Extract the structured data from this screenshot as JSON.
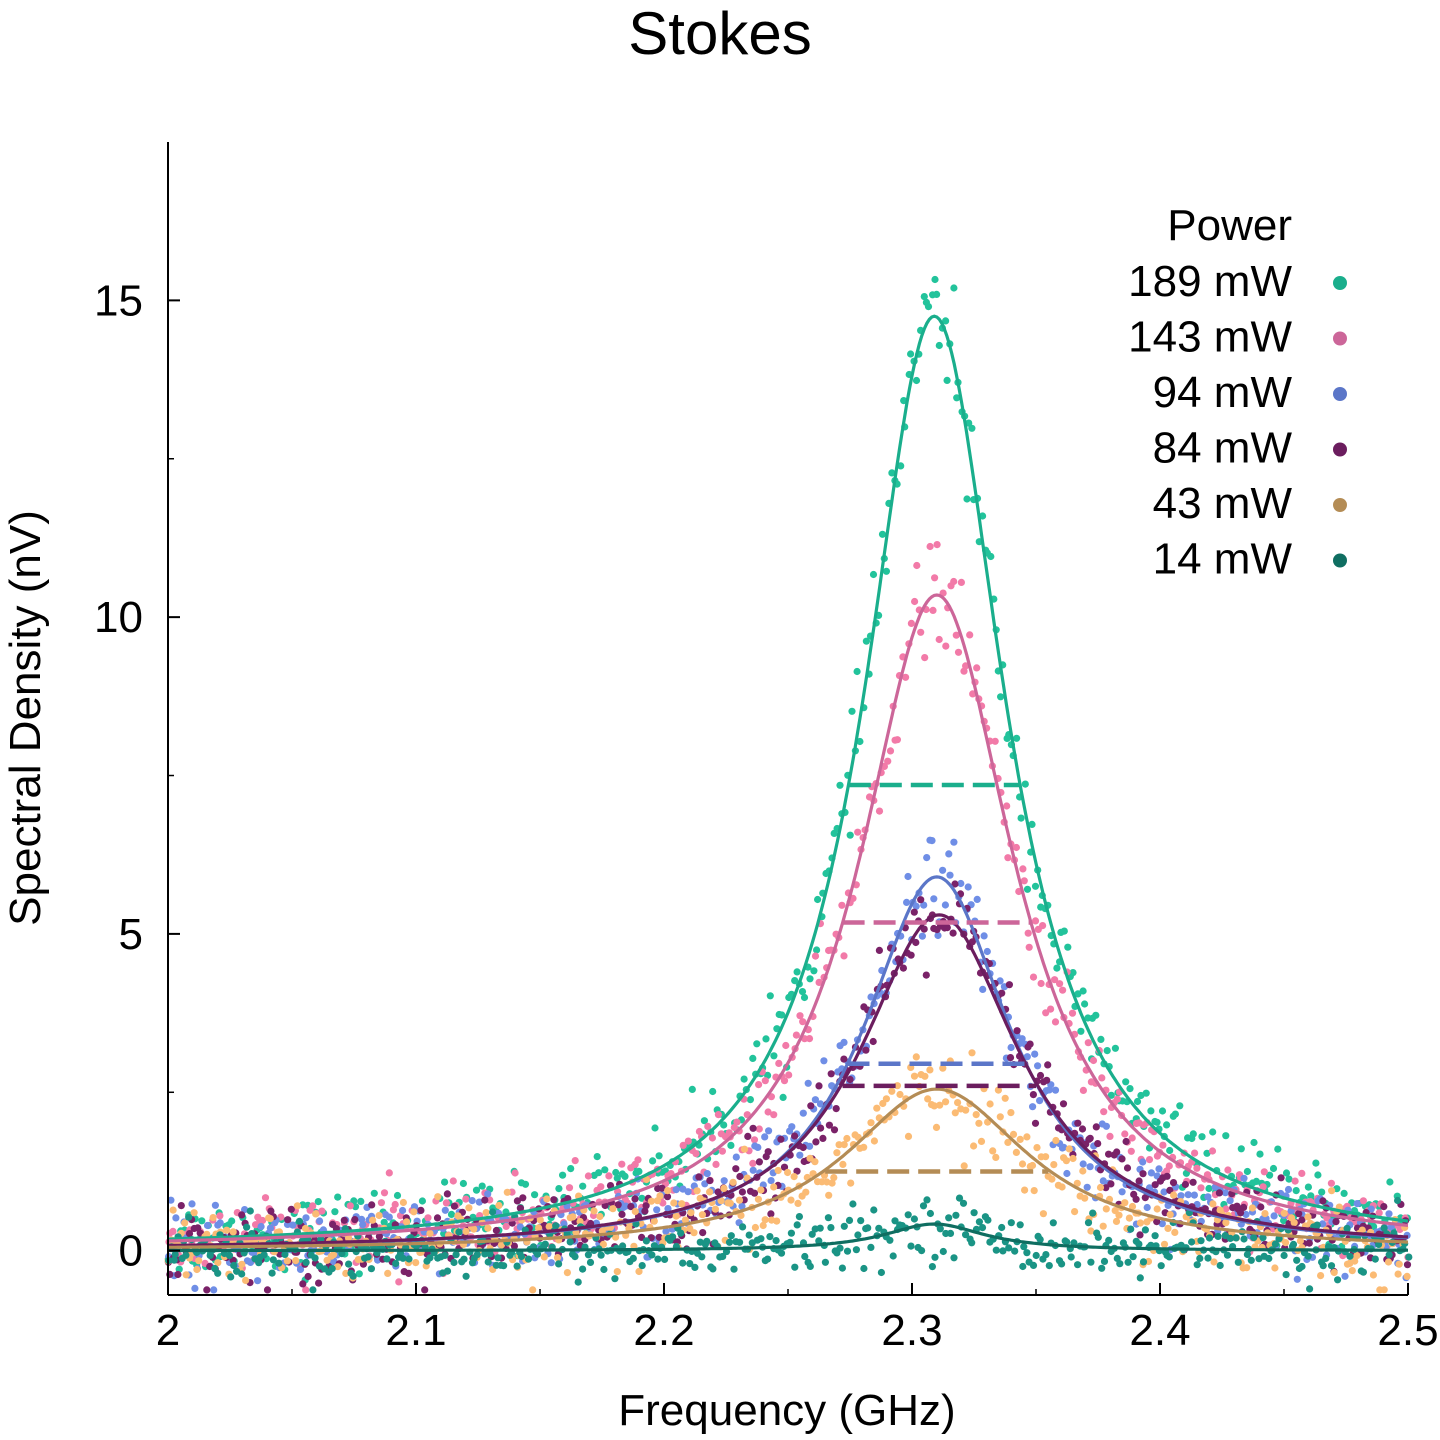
{
  "chart_data": {
    "type": "scatter",
    "title": "Stokes",
    "xlabel": "Frequency (GHz)",
    "ylabel": "Spectral Density (nV)",
    "xlim": [
      2.0,
      2.5
    ],
    "ylim": [
      -0.7,
      17.5
    ],
    "xticks": [
      2,
      2.1,
      2.2,
      2.3,
      2.4,
      2.5
    ],
    "xtick_labels": [
      "2",
      "2.1",
      "2.2",
      "2.3",
      "2.4",
      "2.5"
    ],
    "yticks": [
      0,
      5,
      10,
      15
    ],
    "ytick_labels": [
      "0",
      "5",
      "10",
      "15"
    ],
    "grid": false,
    "legend": {
      "title": "Power",
      "position": "top-right"
    },
    "series": [
      {
        "name": "189 mW",
        "color": "#1aae8c",
        "point_color": "#22c39b",
        "peak": 14.75,
        "center": 2.309,
        "fwhm": 0.069,
        "half_max": 7.35,
        "noise": 0.3
      },
      {
        "name": "143 mW",
        "color": "#cc6699",
        "point_color": "#f27aa8",
        "peak": 10.35,
        "center": 2.31,
        "fwhm": 0.076,
        "half_max": 5.18,
        "noise": 0.3
      },
      {
        "name": "94 mW",
        "color": "#5b76c8",
        "point_color": "#6f8ee6",
        "peak": 5.9,
        "center": 2.31,
        "fwhm": 0.072,
        "half_max": 2.95,
        "noise": 0.3
      },
      {
        "name": "84 mW",
        "color": "#6b1d5e",
        "point_color": "#7a2268",
        "peak": 5.3,
        "center": 2.311,
        "fwhm": 0.078,
        "half_max": 2.6,
        "noise": 0.3
      },
      {
        "name": "43 mW",
        "color": "#b48c55",
        "point_color": "#fbbb74",
        "peak": 2.55,
        "center": 2.31,
        "fwhm": 0.09,
        "half_max": 1.25,
        "noise": 0.3
      },
      {
        "name": "14 mW",
        "color": "#0f6e61",
        "point_color": "#1a9485",
        "peak": 0.42,
        "center": 2.309,
        "fwhm": 0.05,
        "half_max": 0.21,
        "noise": 0.22
      }
    ]
  }
}
